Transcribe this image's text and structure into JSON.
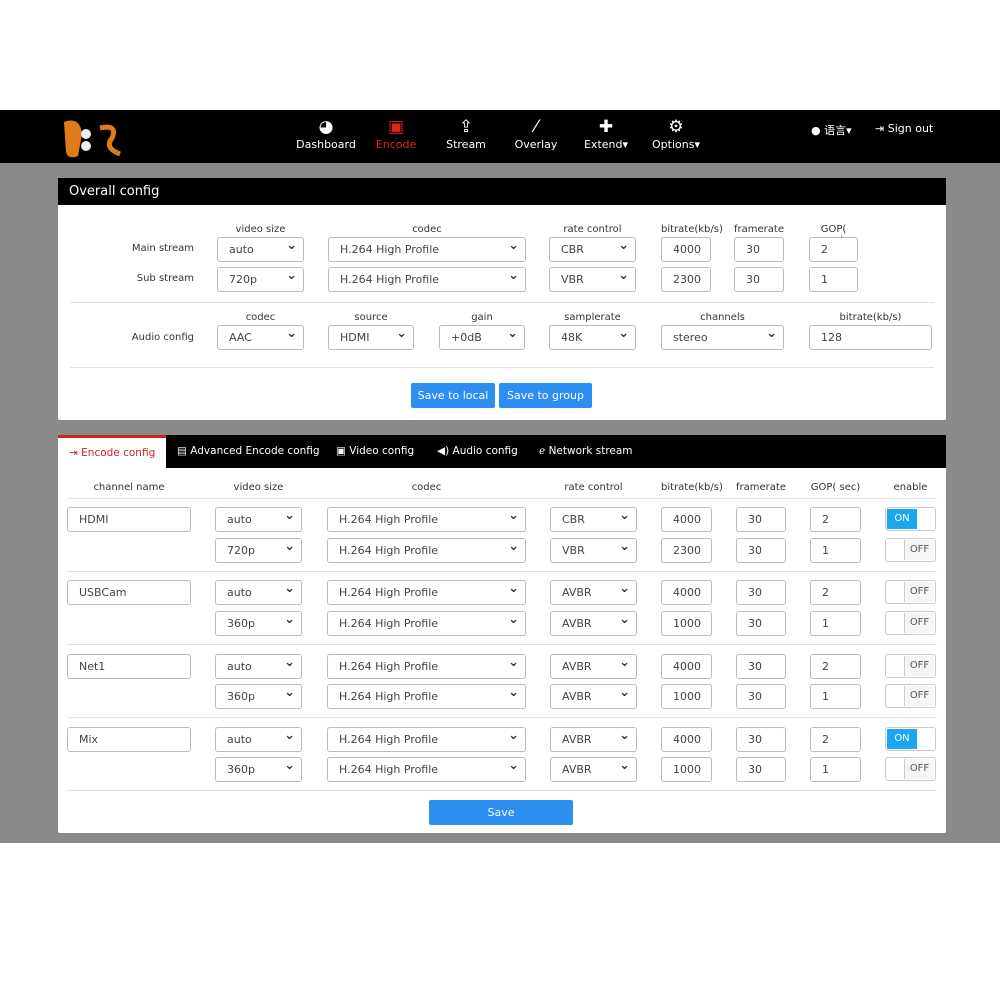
{
  "nav": {
    "items": [
      {
        "label": "Dashboard",
        "icon": "dashboard-icon"
      },
      {
        "label": "Encode",
        "icon": "picture-icon",
        "active": true
      },
      {
        "label": "Stream",
        "icon": "upload-icon"
      },
      {
        "label": "Overlay",
        "icon": "magic-wand-icon"
      },
      {
        "label": "Extend▾",
        "icon": "puzzle-icon"
      },
      {
        "label": "Options▾",
        "icon": "gears-icon"
      }
    ],
    "language": "语言▾",
    "signout": "Sign out"
  },
  "overall": {
    "title": "Overall config",
    "headers": [
      "video size",
      "codec",
      "rate control",
      "bitrate(kb/s)",
      "framerate",
      "GOP( sec)"
    ],
    "rows": [
      {
        "label": "Main stream",
        "size": "auto",
        "codec": "H.264 High Profile",
        "rc": "CBR",
        "bitrate": "4000",
        "fps": "30",
        "gop": "2"
      },
      {
        "label": "Sub stream",
        "size": "720p",
        "codec": "H.264 High Profile",
        "rc": "VBR",
        "bitrate": "2300",
        "fps": "30",
        "gop": "1"
      }
    ],
    "audio": {
      "label": "Audio config",
      "headers": [
        "codec",
        "source",
        "gain",
        "samplerate",
        "channels",
        "bitrate(kb/s)"
      ],
      "values": [
        "AAC",
        "HDMI",
        "+0dB",
        "48K",
        "stereo",
        "128"
      ]
    },
    "save_local": "Save to local",
    "save_group": "Save to group"
  },
  "tabs": [
    "Encode config",
    "Advanced Encode config",
    "Video config",
    "Audio config",
    "Network stream"
  ],
  "encode": {
    "headers": [
      "channel name",
      "video size",
      "codec",
      "rate control",
      "bitrate(kb/s)",
      "framerate",
      "GOP( sec)",
      "enable"
    ],
    "channels": [
      {
        "name": "HDMI",
        "streams": [
          {
            "size": "auto",
            "codec": "H.264 High Profile",
            "rc": "CBR",
            "bitrate": "4000",
            "fps": "30",
            "gop": "2",
            "enable": "ON"
          },
          {
            "size": "720p",
            "codec": "H.264 High Profile",
            "rc": "VBR",
            "bitrate": "2300",
            "fps": "30",
            "gop": "1",
            "enable": "OFF"
          }
        ]
      },
      {
        "name": "USBCam",
        "streams": [
          {
            "size": "auto",
            "codec": "H.264 High Profile",
            "rc": "AVBR",
            "bitrate": "4000",
            "fps": "30",
            "gop": "2",
            "enable": "OFF"
          },
          {
            "size": "360p",
            "codec": "H.264 High Profile",
            "rc": "AVBR",
            "bitrate": "1000",
            "fps": "30",
            "gop": "1",
            "enable": "OFF"
          }
        ]
      },
      {
        "name": "Net1",
        "streams": [
          {
            "size": "auto",
            "codec": "H.264 High Profile",
            "rc": "AVBR",
            "bitrate": "4000",
            "fps": "30",
            "gop": "2",
            "enable": "OFF"
          },
          {
            "size": "360p",
            "codec": "H.264 High Profile",
            "rc": "AVBR",
            "bitrate": "1000",
            "fps": "30",
            "gop": "1",
            "enable": "OFF"
          }
        ]
      },
      {
        "name": "Mix",
        "streams": [
          {
            "size": "auto",
            "codec": "H.264 High Profile",
            "rc": "AVBR",
            "bitrate": "4000",
            "fps": "30",
            "gop": "2",
            "enable": "ON"
          },
          {
            "size": "360p",
            "codec": "H.264 High Profile",
            "rc": "AVBR",
            "bitrate": "1000",
            "fps": "30",
            "gop": "1",
            "enable": "OFF"
          }
        ]
      }
    ],
    "save": "Save"
  },
  "colors": {
    "accent": "#2b8ef0",
    "active_nav": "#e0222c",
    "toggle_on": "#1aa7f0"
  }
}
